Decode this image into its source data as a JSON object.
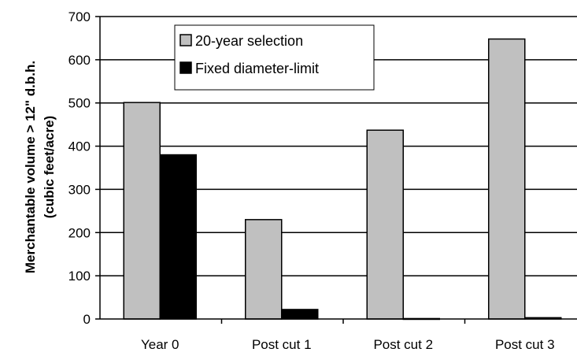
{
  "chart_data": {
    "type": "bar",
    "categories": [
      "Year 0",
      "Post cut 1",
      "Post cut 2",
      "Post cut 3"
    ],
    "series": [
      {
        "name": "20-year selection",
        "values": [
          501,
          230,
          437,
          648
        ]
      },
      {
        "name": "Fixed diameter-limit",
        "values": [
          380,
          22,
          1,
          3
        ]
      }
    ],
    "title": "",
    "xlabel": "",
    "ylabel_line1": "Merchantable volume > 12\" d.b.h.",
    "ylabel_line2": "(cubic feet/acre)",
    "ylim": [
      0,
      700
    ],
    "yticks": [
      0,
      100,
      200,
      300,
      400,
      500,
      600,
      700
    ],
    "grid": "horizontal",
    "legend_position": "top-center",
    "colors": {
      "20-year selection": "#c0c0c0",
      "Fixed diameter-limit": "#000000"
    }
  }
}
